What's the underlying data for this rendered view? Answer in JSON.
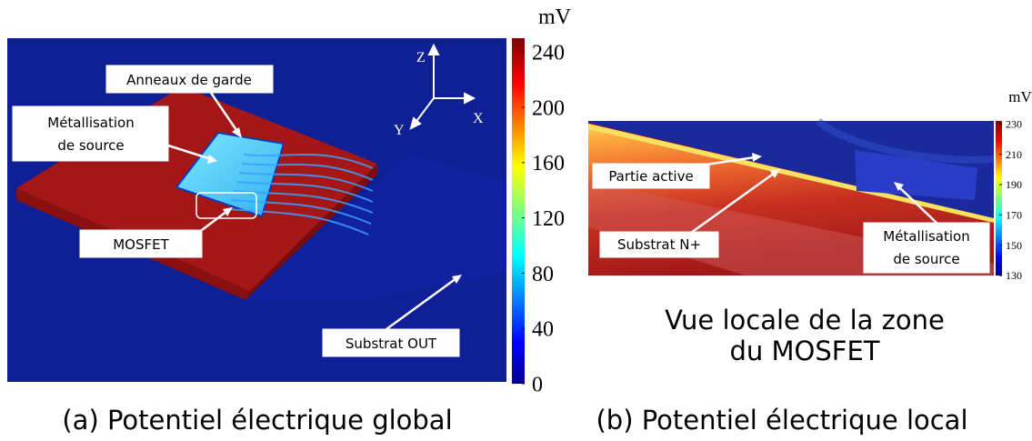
{
  "panel_a": {
    "colorbar": {
      "unit": "mV",
      "lim": [
        0,
        250
      ],
      "ticks": [
        0,
        40,
        80,
        120,
        160,
        200,
        240
      ]
    },
    "axes": {
      "z": "Z",
      "x": "X",
      "y": "Y"
    },
    "annotations": {
      "rings": "Anneaux de garde",
      "metal": [
        "Métallisation",
        "de source"
      ],
      "mosfet": "MOSFET",
      "substrate": "Substrat OUT"
    },
    "caption": "(a) Potentiel électrique global"
  },
  "panel_b": {
    "colorbar": {
      "unit": "mV",
      "lim": [
        130,
        232
      ],
      "ticks": [
        130,
        150,
        170,
        190,
        210,
        230
      ]
    },
    "annotations": {
      "active": "Partie active",
      "substrate": "Substrat N+",
      "metal": [
        "Métallisation",
        "de source"
      ]
    },
    "title": [
      "Vue locale de la zone",
      "du MOSFET"
    ],
    "caption": "(b) Potentiel électrique local"
  }
}
